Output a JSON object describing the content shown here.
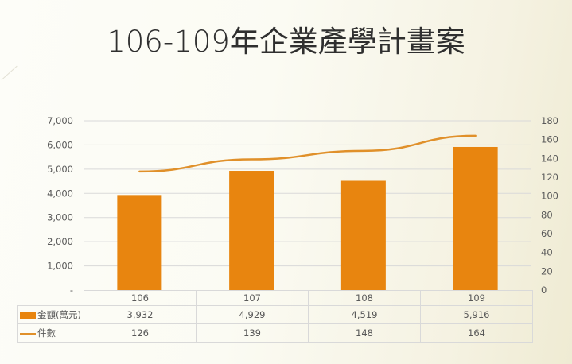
{
  "title": "106-109年企業產學計畫案",
  "colors": {
    "bar": "#e8850f",
    "line": "#e0902a",
    "grid": "#d9d9d9",
    "text": "#595959",
    "title": "#2f2f2f"
  },
  "axes": {
    "left_ticks": [
      "-",
      "1,000",
      "2,000",
      "3,000",
      "4,000",
      "5,000",
      "6,000",
      "7,000"
    ],
    "right_ticks": [
      "0",
      "20",
      "40",
      "60",
      "80",
      "100",
      "120",
      "140",
      "160",
      "180"
    ]
  },
  "table": {
    "categories": [
      "106",
      "107",
      "108",
      "109"
    ],
    "rows": [
      {
        "label": "金額(萬元)",
        "key": "bar",
        "values": [
          "3,932",
          "4,929",
          "4,519",
          "5,916"
        ]
      },
      {
        "label": "件數",
        "key": "line",
        "values": [
          "126",
          "139",
          "148",
          "164"
        ]
      }
    ]
  },
  "chart_data": {
    "type": "bar",
    "title": "106-109年企業產學計畫案",
    "categories": [
      "106",
      "107",
      "108",
      "109"
    ],
    "series": [
      {
        "name": "金額(萬元)",
        "type": "bar",
        "axis": "left",
        "values": [
          3932,
          4929,
          4519,
          5916
        ]
      },
      {
        "name": "件數",
        "type": "line",
        "axis": "right",
        "values": [
          126,
          139,
          148,
          164
        ]
      }
    ],
    "xlabel": "",
    "ylabel": "",
    "ylim": [
      0,
      7000
    ],
    "y2lim": [
      0,
      180
    ],
    "grid": true,
    "legend_position": "data-table"
  }
}
